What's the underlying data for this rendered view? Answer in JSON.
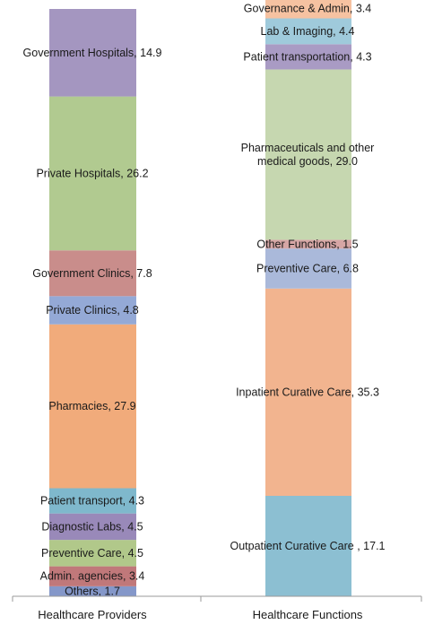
{
  "chart_data": {
    "type": "bar",
    "stacked": true,
    "categories": [
      "Healthcare Providers",
      "Healthcare Functions"
    ],
    "ylim": [
      0,
      100
    ],
    "grid": false,
    "legend": "none",
    "stacks": [
      {
        "category": "Healthcare Providers",
        "segments": [
          {
            "name": "Others",
            "value": 1.7,
            "label": "Others, 1.7",
            "color": "#8497c9"
          },
          {
            "name": "Admin. agencies",
            "value": 3.4,
            "label": "Admin. agencies, 3.4",
            "color": "#c0787a"
          },
          {
            "name": "Preventive Care",
            "value": 4.5,
            "label": "Preventive Care, 4.5",
            "color": "#b1c88a"
          },
          {
            "name": "Diagnostic Labs",
            "value": 4.5,
            "label": "Diagnostic Labs, 4.5",
            "color": "#9989b9"
          },
          {
            "name": "Patient transport",
            "value": 4.3,
            "label": "Patient transport, 4.3",
            "color": "#7fb8cc"
          },
          {
            "name": "Pharmacies",
            "value": 27.9,
            "label": "Pharmacies, 27.9",
            "color": "#f1ab7b"
          },
          {
            "name": "Private Clinics",
            "value": 4.8,
            "label": "Private Clinics, 4.8",
            "color": "#94a9d6"
          },
          {
            "name": "Government Clinics",
            "value": 7.8,
            "label": "Government Clinics, 7.8",
            "color": "#c98d8b"
          },
          {
            "name": "Private Hospitals",
            "value": 26.2,
            "label": "Private Hospitals, 26.2",
            "color": "#b1ca90"
          },
          {
            "name": "Government Hospitals",
            "value": 14.9,
            "label": "Government Hospitals, 14.9",
            "color": "#a496c0"
          }
        ]
      },
      {
        "category": "Healthcare Functions",
        "segments": [
          {
            "name": "Outpatient Curative Care",
            "value": 17.1,
            "label": "Outpatient Curative Care , 17.1",
            "color": "#8cbfd2"
          },
          {
            "name": "Inpatient Curative Care",
            "value": 35.3,
            "label": "Inpatient Curative Care, 35.3",
            "color": "#f2b48f"
          },
          {
            "name": "Preventive Care",
            "value": 6.8,
            "label": "Preventive Care, 6.8",
            "color": "#aab9da"
          },
          {
            "name": "Other Functions",
            "value": 1.5,
            "label": "Other Functions, 1.5",
            "color": "#d6a6a5"
          },
          {
            "name": "Pharmaceuticals and other medical goods",
            "value": 29.0,
            "label": "Pharmaceuticals and other medical goods, 29.0",
            "label_lines": [
              "Pharmaceuticals and other",
              "medical goods, 29.0"
            ],
            "color": "#c6d7b0"
          },
          {
            "name": "Patient transportation",
            "value": 4.3,
            "label": "Patient transportation, 4.3",
            "color": "#a99bc4"
          },
          {
            "name": "Lab & Imaging",
            "value": 4.4,
            "label": "Lab & Imaging, 4.4",
            "color": "#9fcadb"
          },
          {
            "name": "Governance & Admin",
            "value": 3.4,
            "label": "Governance & Admin, 3.4",
            "color": "#f6c2a1"
          }
        ]
      }
    ]
  }
}
